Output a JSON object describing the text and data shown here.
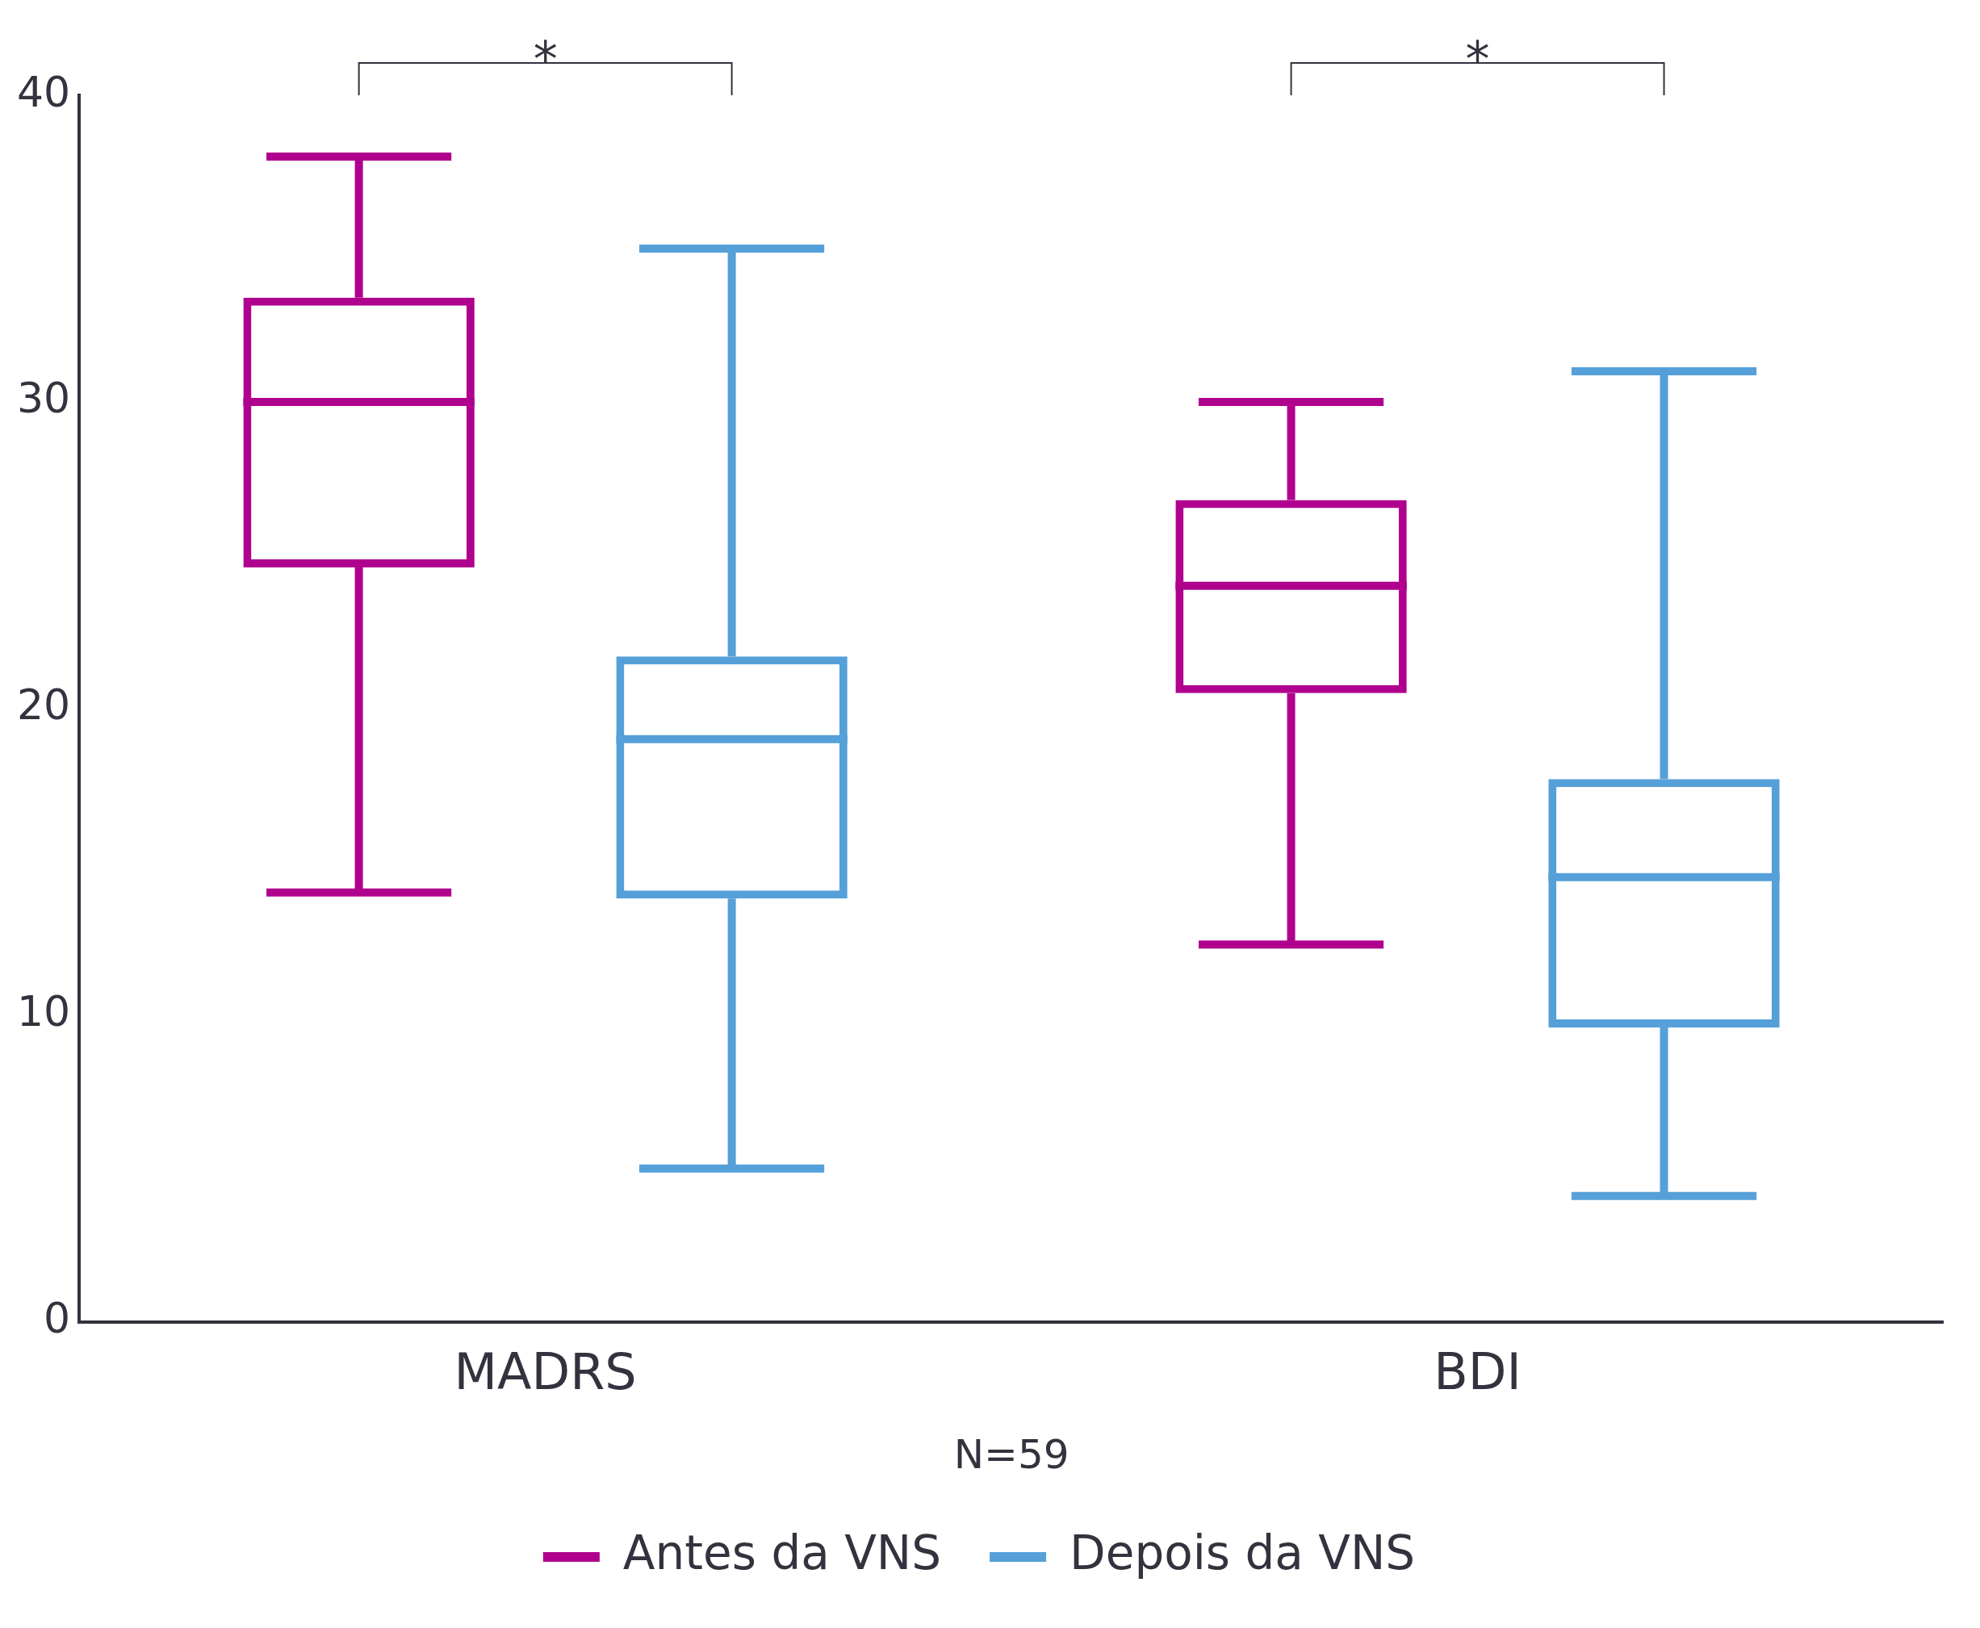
{
  "chart_data": {
    "type": "box",
    "categories": [
      "MADRS",
      "BDI"
    ],
    "xlabel": "N=59",
    "ylim": [
      0,
      40
    ],
    "yticks": [
      0,
      10,
      20,
      30,
      40
    ],
    "grid": false,
    "legend": "bottom",
    "series": [
      {
        "name": "Antes da VNS",
        "color": "#b0008e",
        "boxes": [
          {
            "low": 14,
            "q1": 24.6,
            "median": 30,
            "q3": 33.4,
            "high": 38
          },
          {
            "low": 12.3,
            "q1": 20.5,
            "median": 24,
            "q3": 26.8,
            "high": 30
          }
        ]
      },
      {
        "name": "Depois da VNS",
        "color": "#55a0d8",
        "boxes": [
          {
            "low": 5,
            "q1": 13.8,
            "median": 19,
            "q3": 21.7,
            "high": 35
          },
          {
            "low": 4.1,
            "q1": 9.6,
            "median": 14.5,
            "q3": 17.7,
            "high": 31
          }
        ]
      }
    ],
    "annotations": [
      "*",
      "*"
    ]
  }
}
